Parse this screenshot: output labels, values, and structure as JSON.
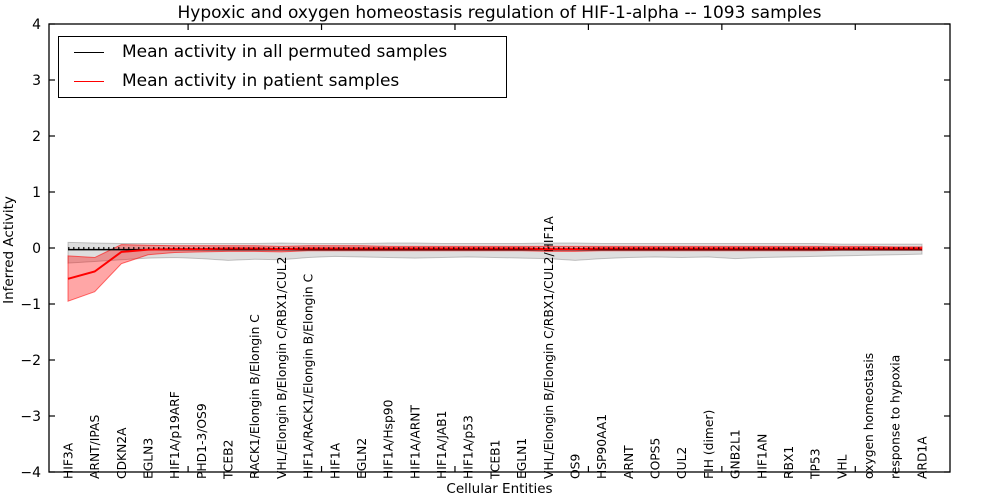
{
  "chart_data": {
    "type": "line",
    "title": "Hypoxic and oxygen homeostasis regulation of HIF-1-alpha -- 1093 samples",
    "xlabel": "Cellular Entities",
    "ylabel": "Inferred Activity",
    "ylim": [
      -4,
      4
    ],
    "yticks": [
      4,
      3,
      2,
      1,
      0,
      -1,
      -2,
      -3,
      -4
    ],
    "yticklabels": [
      "4",
      "3",
      "2",
      "1",
      "0",
      "−1",
      "−2",
      "−3",
      "−4"
    ],
    "x_major_tick_positions": [
      4.5,
      9.5,
      14.5,
      19.5,
      24.5,
      29.5
    ],
    "grid": false,
    "legend_position": "upper left",
    "categories": [
      "HIF3A",
      "ARNT/IPAS",
      "CDKN2A",
      "EGLN3",
      "HIF1A/p19ARF",
      "PHD1-3/OS9",
      "TCEB2",
      "RACK1/Elongin B/Elongin C",
      "VHL/Elongin B/Elongin C/RBX1/CUL2",
      "HIF1A/RACK1/Elongin B/Elongin C",
      "HIF1A",
      "EGLN2",
      "HIF1A/Hsp90",
      "HIF1A/ARNT",
      "HIF1A/JAB1",
      "HIF1A/p53",
      "TCEB1",
      "EGLN1",
      "VHL/Elongin B/Elongin C/RBX1/CUL2/HIF1A",
      "OS9",
      "HSP90AA1",
      "ARNT",
      "COPS5",
      "CUL2",
      "FIH (dimer)",
      "GNB2L1",
      "HIF1AN",
      "RBX1",
      "TP53",
      "VHL",
      "oxygen homeostasis",
      "response to hypoxia",
      "ARD1A"
    ],
    "series": [
      {
        "name": "Mean activity in all permuted samples",
        "color": "#000000",
        "style": "solid",
        "values": [
          -0.03,
          -0.03,
          -0.03,
          -0.03,
          -0.03,
          -0.03,
          -0.03,
          -0.03,
          -0.03,
          -0.03,
          -0.03,
          -0.03,
          -0.03,
          -0.03,
          -0.03,
          -0.03,
          -0.03,
          -0.03,
          -0.03,
          -0.03,
          -0.03,
          -0.03,
          -0.03,
          -0.03,
          -0.03,
          -0.03,
          -0.03,
          -0.03,
          -0.03,
          -0.03,
          -0.03,
          -0.03,
          -0.03
        ]
      },
      {
        "name": "Mean activity in patient samples",
        "color": "#ff0000",
        "style": "solid",
        "values": [
          -0.55,
          -0.42,
          -0.07,
          -0.03,
          -0.02,
          -0.02,
          -0.01,
          -0.01,
          -0.02,
          -0.01,
          -0.01,
          -0.01,
          -0.01,
          -0.01,
          -0.01,
          -0.01,
          -0.01,
          -0.01,
          -0.02,
          -0.02,
          -0.01,
          -0.01,
          -0.01,
          -0.01,
          -0.01,
          -0.01,
          -0.01,
          -0.01,
          -0.01,
          -0.01,
          -0.01,
          -0.01,
          -0.01
        ]
      }
    ],
    "bands": [
      {
        "name": "permuted-samples-range",
        "color": "#000000",
        "opacity": 0.13,
        "lo": [
          -0.27,
          -0.24,
          -0.21,
          -0.18,
          -0.17,
          -0.19,
          -0.22,
          -0.2,
          -0.21,
          -0.17,
          -0.15,
          -0.16,
          -0.17,
          -0.18,
          -0.17,
          -0.16,
          -0.17,
          -0.18,
          -0.19,
          -0.22,
          -0.19,
          -0.17,
          -0.16,
          -0.17,
          -0.16,
          -0.19,
          -0.17,
          -0.16,
          -0.15,
          -0.14,
          -0.13,
          -0.12,
          -0.11
        ],
        "hi": [
          0.1,
          0.09,
          0.08,
          0.08,
          0.08,
          0.08,
          0.08,
          0.08,
          0.09,
          0.08,
          0.08,
          0.08,
          0.09,
          0.09,
          0.08,
          0.08,
          0.08,
          0.08,
          0.09,
          0.09,
          0.08,
          0.08,
          0.08,
          0.08,
          0.08,
          0.08,
          0.08,
          0.08,
          0.08,
          0.07,
          0.07,
          0.07,
          0.07
        ]
      },
      {
        "name": "patient-samples-range",
        "color": "#ff0000",
        "opacity": 0.35,
        "lo": [
          -0.95,
          -0.78,
          -0.28,
          -0.12,
          -0.08,
          -0.07,
          -0.06,
          -0.06,
          -0.07,
          -0.05,
          -0.05,
          -0.05,
          -0.05,
          -0.05,
          -0.05,
          -0.05,
          -0.05,
          -0.05,
          -0.06,
          -0.06,
          -0.05,
          -0.05,
          -0.05,
          -0.05,
          -0.05,
          -0.05,
          -0.05,
          -0.05,
          -0.05,
          -0.04,
          -0.04,
          -0.04,
          -0.04
        ],
        "hi": [
          -0.14,
          -0.17,
          0.06,
          0.05,
          0.04,
          0.04,
          0.04,
          0.04,
          0.03,
          0.04,
          0.04,
          0.04,
          0.03,
          0.03,
          0.03,
          0.03,
          0.03,
          0.03,
          0.03,
          0.03,
          0.03,
          0.03,
          0.03,
          0.03,
          0.03,
          0.03,
          0.03,
          0.03,
          0.03,
          0.03,
          0.03,
          0.02,
          0.02
        ]
      }
    ],
    "reference_line": {
      "y": 0,
      "color": "#000000",
      "style": "dotted"
    }
  }
}
